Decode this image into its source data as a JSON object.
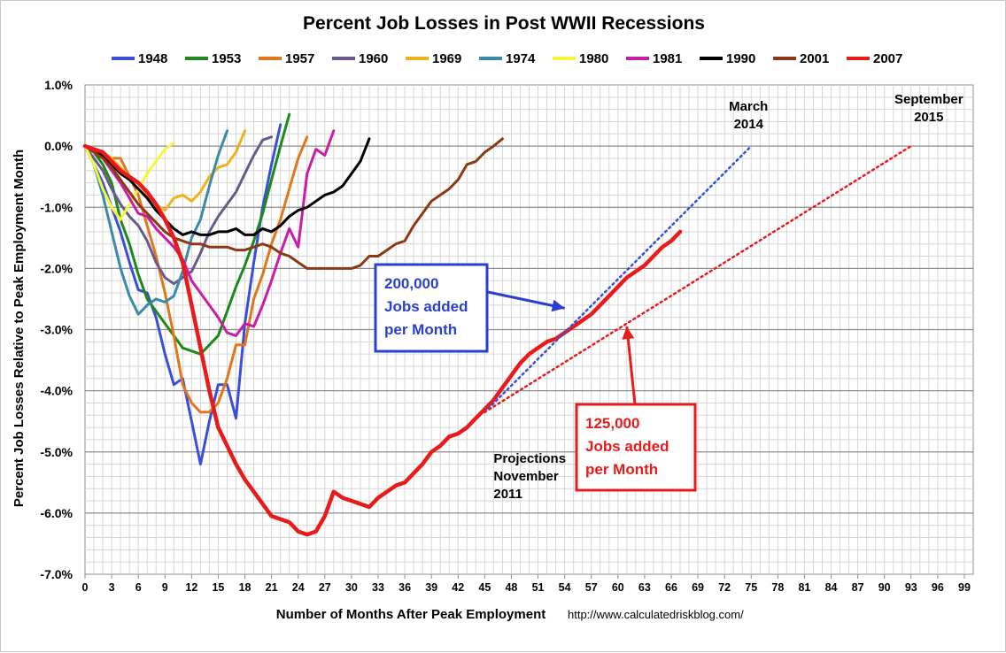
{
  "chart_data": {
    "type": "line",
    "title": "Percent Job Losses in Post WWII Recessions",
    "xlabel": "Number of Months After Peak Employment",
    "ylabel": "Percent Job Losses Relative to Peak Employment Month",
    "source": "http://www.calculatedriskblog.com/",
    "xlim": [
      0,
      100
    ],
    "ylim": [
      -7.0,
      1.0
    ],
    "xticks": [
      0,
      3,
      6,
      9,
      12,
      15,
      18,
      21,
      24,
      27,
      30,
      33,
      36,
      39,
      42,
      45,
      48,
      51,
      54,
      57,
      60,
      63,
      66,
      69,
      72,
      75,
      78,
      81,
      84,
      87,
      90,
      93,
      96,
      99
    ],
    "yticks": [
      1.0,
      0.0,
      -1.0,
      -2.0,
      -3.0,
      -4.0,
      -5.0,
      -6.0,
      -7.0
    ],
    "ytick_labels": [
      "1.0%",
      "0.0%",
      "-1.0%",
      "-2.0%",
      "-3.0%",
      "-4.0%",
      "-5.0%",
      "-6.0%",
      "-7.0%"
    ],
    "grid": true,
    "legend_position": "top",
    "series": [
      {
        "name": "1948",
        "color": "#3a4fd9",
        "width": 3,
        "x": [
          0,
          1,
          2,
          3,
          4,
          5,
          6,
          7,
          8,
          9,
          10,
          11,
          12,
          13,
          14,
          15,
          16,
          17,
          18,
          19,
          20,
          21,
          22
        ],
        "y": [
          0,
          -0.3,
          -0.6,
          -1.0,
          -1.4,
          -1.9,
          -2.35,
          -2.4,
          -2.8,
          -3.4,
          -3.9,
          -3.8,
          -4.5,
          -5.2,
          -4.5,
          -3.9,
          -3.9,
          -4.45,
          -2.9,
          -1.9,
          -1.0,
          -0.3,
          0.35
        ]
      },
      {
        "name": "1953",
        "color": "#1b8a1b",
        "width": 3,
        "x": [
          0,
          1,
          2,
          3,
          4,
          5,
          6,
          7,
          8,
          9,
          10,
          11,
          12,
          13,
          14,
          15,
          16,
          17,
          18,
          19,
          20,
          21,
          22,
          23
        ],
        "y": [
          0,
          -0.1,
          -0.3,
          -0.6,
          -1.2,
          -1.6,
          -2.1,
          -2.5,
          -2.7,
          -2.9,
          -3.1,
          -3.3,
          -3.35,
          -3.4,
          -3.25,
          -3.1,
          -2.7,
          -2.3,
          -1.95,
          -1.55,
          -1.1,
          -0.55,
          0.0,
          0.52
        ]
      },
      {
        "name": "1957",
        "color": "#e2761b",
        "width": 3,
        "x": [
          0,
          1,
          2,
          3,
          4,
          5,
          6,
          7,
          8,
          9,
          10,
          11,
          12,
          13,
          14,
          15,
          16,
          17,
          18,
          19,
          20,
          21,
          22,
          23,
          24,
          25
        ],
        "y": [
          0,
          -0.1,
          -0.2,
          -0.2,
          -0.2,
          -0.5,
          -0.8,
          -1.3,
          -1.8,
          -2.4,
          -3.1,
          -3.9,
          -4.2,
          -4.35,
          -4.35,
          -4.2,
          -3.8,
          -3.25,
          -3.25,
          -2.5,
          -2.1,
          -1.6,
          -1.2,
          -0.7,
          -0.2,
          0.15
        ]
      },
      {
        "name": "1960",
        "color": "#6a5a8c",
        "width": 3,
        "x": [
          0,
          1,
          2,
          3,
          4,
          5,
          6,
          7,
          8,
          9,
          10,
          11,
          12,
          13,
          14,
          15,
          16,
          17,
          18,
          19,
          20,
          21
        ],
        "y": [
          0,
          -0.2,
          -0.4,
          -0.7,
          -0.95,
          -1.15,
          -1.3,
          -1.55,
          -1.9,
          -2.15,
          -2.25,
          -2.15,
          -2.05,
          -1.75,
          -1.4,
          -1.15,
          -0.95,
          -0.75,
          -0.45,
          -0.15,
          0.1,
          0.15
        ]
      },
      {
        "name": "1969",
        "color": "#f0b21c",
        "width": 3,
        "x": [
          0,
          1,
          2,
          3,
          4,
          5,
          6,
          7,
          8,
          9,
          10,
          11,
          12,
          13,
          14,
          15,
          16,
          17,
          18
        ],
        "y": [
          0,
          -0.05,
          -0.1,
          -0.2,
          -0.35,
          -0.5,
          -0.6,
          -0.8,
          -0.95,
          -1.05,
          -0.85,
          -0.8,
          -0.9,
          -0.75,
          -0.5,
          -0.35,
          -0.3,
          -0.1,
          0.25
        ]
      },
      {
        "name": "1974",
        "color": "#3a8aa8",
        "width": 3,
        "x": [
          0,
          1,
          2,
          3,
          4,
          5,
          6,
          7,
          8,
          9,
          10,
          11,
          12,
          13,
          14,
          15,
          16
        ],
        "y": [
          0,
          -0.3,
          -0.8,
          -1.4,
          -2.0,
          -2.45,
          -2.75,
          -2.6,
          -2.5,
          -2.55,
          -2.45,
          -2.05,
          -1.5,
          -1.2,
          -0.65,
          -0.15,
          0.25
        ]
      },
      {
        "name": "1980",
        "color": "#f5f53a",
        "width": 3,
        "x": [
          0,
          1,
          2,
          3,
          4,
          5,
          6,
          7,
          8,
          9,
          10
        ],
        "y": [
          0,
          -0.3,
          -0.7,
          -1.0,
          -1.2,
          -0.95,
          -0.7,
          -0.45,
          -0.25,
          -0.05,
          0.05
        ]
      },
      {
        "name": "1981",
        "color": "#c81ea6",
        "width": 3,
        "x": [
          0,
          1,
          2,
          3,
          4,
          5,
          6,
          7,
          8,
          9,
          10,
          11,
          12,
          13,
          14,
          15,
          16,
          17,
          18,
          19,
          20,
          21,
          22,
          23,
          24,
          25,
          26,
          27,
          28
        ],
        "y": [
          0,
          -0.05,
          -0.2,
          -0.4,
          -0.6,
          -0.85,
          -1.1,
          -1.15,
          -1.35,
          -1.5,
          -1.65,
          -1.85,
          -2.2,
          -2.4,
          -2.6,
          -2.8,
          -3.05,
          -3.1,
          -2.9,
          -2.95,
          -2.6,
          -2.2,
          -1.75,
          -1.35,
          -1.65,
          -0.45,
          -0.05,
          -0.15,
          0.25
        ]
      },
      {
        "name": "1990",
        "color": "#000000",
        "width": 3,
        "x": [
          0,
          1,
          2,
          3,
          4,
          5,
          6,
          7,
          8,
          9,
          10,
          11,
          12,
          13,
          14,
          15,
          16,
          17,
          18,
          19,
          20,
          21,
          22,
          23,
          24,
          25,
          26,
          27,
          28,
          29,
          30,
          31,
          32
        ],
        "y": [
          0,
          -0.05,
          -0.15,
          -0.3,
          -0.45,
          -0.55,
          -0.7,
          -0.85,
          -1.05,
          -1.2,
          -1.35,
          -1.45,
          -1.4,
          -1.45,
          -1.45,
          -1.4,
          -1.4,
          -1.35,
          -1.45,
          -1.45,
          -1.35,
          -1.4,
          -1.3,
          -1.15,
          -1.05,
          -1.0,
          -0.9,
          -0.8,
          -0.75,
          -0.65,
          -0.45,
          -0.25,
          0.12
        ]
      },
      {
        "name": "2001",
        "color": "#8b3a15",
        "width": 3,
        "x": [
          0,
          1,
          2,
          3,
          4,
          5,
          6,
          7,
          8,
          9,
          10,
          11,
          12,
          13,
          14,
          15,
          16,
          17,
          18,
          19,
          20,
          21,
          22,
          23,
          24,
          25,
          26,
          27,
          28,
          29,
          30,
          31,
          32,
          33,
          34,
          35,
          36,
          37,
          38,
          39,
          40,
          41,
          42,
          43,
          44,
          45,
          46,
          47
        ],
        "y": [
          0,
          -0.1,
          -0.2,
          -0.35,
          -0.55,
          -0.75,
          -0.95,
          -1.1,
          -1.25,
          -1.4,
          -1.5,
          -1.55,
          -1.6,
          -1.6,
          -1.65,
          -1.65,
          -1.65,
          -1.7,
          -1.7,
          -1.65,
          -1.6,
          -1.65,
          -1.75,
          -1.8,
          -1.9,
          -2.0,
          -2.0,
          -2.0,
          -2.0,
          -2.0,
          -2.0,
          -1.95,
          -1.8,
          -1.8,
          -1.7,
          -1.6,
          -1.55,
          -1.3,
          -1.1,
          -0.9,
          -0.8,
          -0.7,
          -0.55,
          -0.3,
          -0.25,
          -0.1,
          0.0,
          0.12
        ]
      },
      {
        "name": "2007",
        "color": "#e81b1b",
        "width": 4.5,
        "x": [
          0,
          1,
          2,
          3,
          4,
          5,
          6,
          7,
          8,
          9,
          10,
          11,
          12,
          13,
          14,
          15,
          16,
          17,
          18,
          19,
          20,
          21,
          22,
          23,
          24,
          25,
          26,
          27,
          28,
          29,
          30,
          31,
          32,
          33,
          34,
          35,
          36,
          37,
          38,
          39,
          40,
          41,
          42,
          43,
          44,
          45,
          46,
          47,
          48,
          49,
          50,
          51,
          52,
          53,
          54,
          55,
          56,
          57,
          58,
          59,
          60,
          61,
          62,
          63,
          64,
          65,
          66,
          67
        ],
        "y": [
          0,
          -0.05,
          -0.1,
          -0.25,
          -0.4,
          -0.5,
          -0.6,
          -0.75,
          -0.95,
          -1.2,
          -1.5,
          -1.9,
          -2.6,
          -3.3,
          -4.0,
          -4.6,
          -4.9,
          -5.2,
          -5.45,
          -5.65,
          -5.85,
          -6.05,
          -6.1,
          -6.15,
          -6.3,
          -6.35,
          -6.3,
          -6.05,
          -5.65,
          -5.75,
          -5.8,
          -5.85,
          -5.9,
          -5.75,
          -5.65,
          -5.55,
          -5.5,
          -5.35,
          -5.2,
          -5.0,
          -4.9,
          -4.75,
          -4.7,
          -4.6,
          -4.45,
          -4.3,
          -4.15,
          -3.95,
          -3.75,
          -3.55,
          -3.4,
          -3.3,
          -3.2,
          -3.15,
          -3.05,
          -2.95,
          -2.85,
          -2.75,
          -2.6,
          -2.45,
          -2.3,
          -2.15,
          -2.05,
          -1.95,
          -1.8,
          -1.65,
          -1.55,
          -1.4
        ]
      },
      {
        "color": "#3a4fd9",
        "width": 2.5,
        "dotted": true,
        "x": [
          45,
          75
        ],
        "y": [
          -4.35,
          0.0
        ]
      },
      {
        "color": "#e81b1b",
        "width": 2.5,
        "dotted": true,
        "x": [
          45,
          93
        ],
        "y": [
          -4.35,
          0.0
        ]
      }
    ],
    "annotations": [
      {
        "text_lines": [
          "March",
          "2014"
        ],
        "x": 75,
        "y": 0.0,
        "color": "#000000"
      },
      {
        "text_lines": [
          "September",
          "2015"
        ],
        "x": 93,
        "y": 0.0,
        "color": "#000000"
      },
      {
        "text_lines": [
          "Projections",
          "November",
          "2011"
        ],
        "x": 46,
        "y": -5.0,
        "color": "#000000"
      }
    ],
    "callouts": [
      {
        "text_lines": [
          "200,000",
          "Jobs added",
          "per Month"
        ],
        "color": "#2a3fd0",
        "arrow_to": [
          54,
          -2.65
        ]
      },
      {
        "text_lines": [
          "125,000",
          "Jobs added",
          "per Month"
        ],
        "color": "#e81b1b",
        "arrow_to": [
          61,
          -2.95
        ]
      }
    ]
  }
}
